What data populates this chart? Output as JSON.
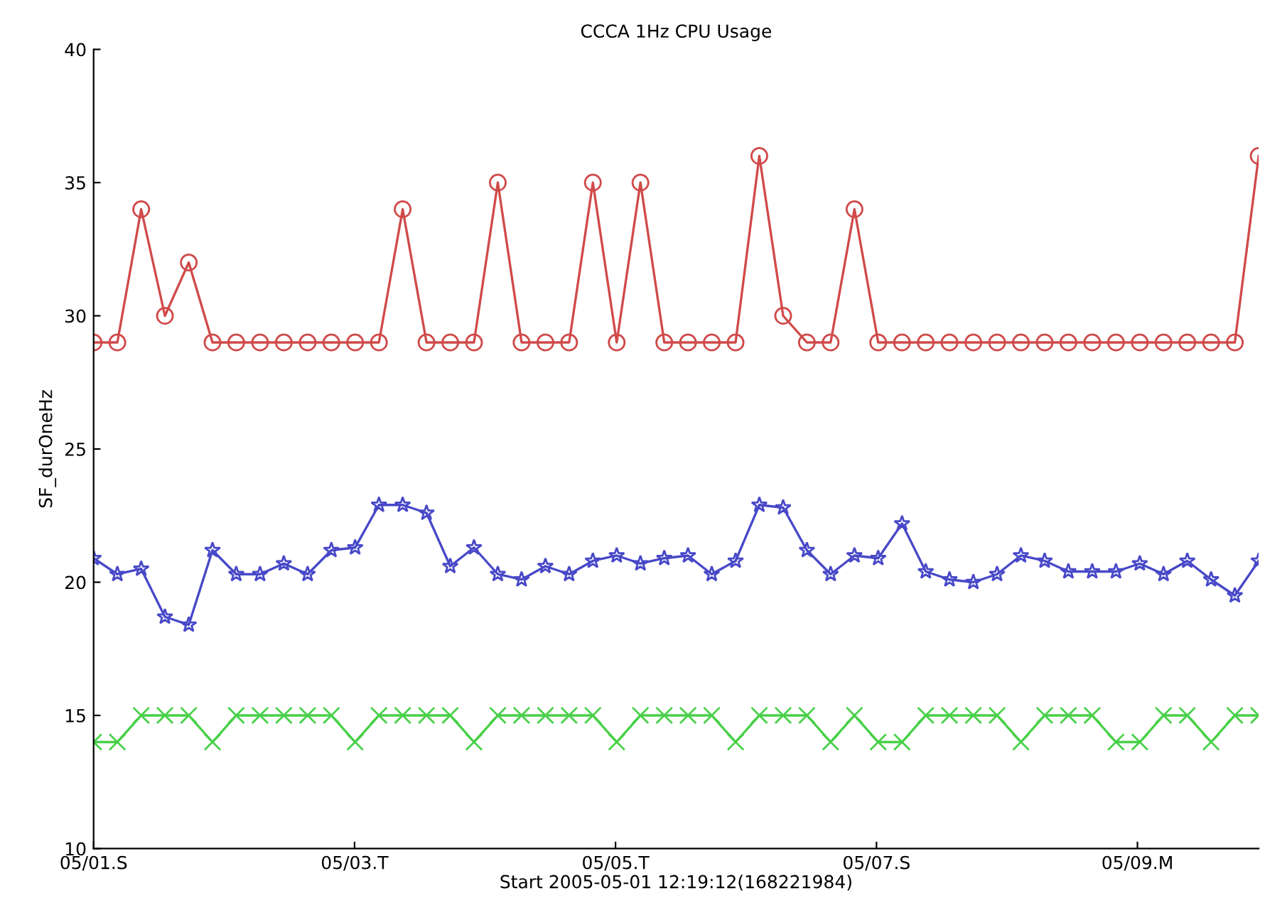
{
  "chart_data": {
    "type": "line",
    "title": "CCCA 1Hz CPU Usage",
    "xlabel": "Start 2005-05-01 12:19:12(168221984)",
    "ylabel": "SF_durOneHz",
    "x": [
      "2005-05-01T00:00",
      "2005-05-01T04:22",
      "2005-05-01T08:45",
      "2005-05-01T13:07",
      "2005-05-01T17:30",
      "2005-05-01T21:52",
      "2005-05-02T02:14",
      "2005-05-02T06:37",
      "2005-05-02T10:59",
      "2005-05-02T15:22",
      "2005-05-02T19:44",
      "2005-05-03T00:06",
      "2005-05-03T04:29",
      "2005-05-03T08:51",
      "2005-05-03T13:14",
      "2005-05-03T17:36",
      "2005-05-03T21:58",
      "2005-05-04T02:21",
      "2005-05-04T06:43",
      "2005-05-04T11:06",
      "2005-05-04T15:28",
      "2005-05-04T19:50",
      "2005-05-05T00:13",
      "2005-05-05T04:35",
      "2005-05-05T08:58",
      "2005-05-05T13:20",
      "2005-05-05T17:42",
      "2005-05-05T22:05",
      "2005-05-06T02:27",
      "2005-05-06T06:50",
      "2005-05-06T11:12",
      "2005-05-06T15:34",
      "2005-05-06T19:57",
      "2005-05-07T00:19",
      "2005-05-07T04:42",
      "2005-05-07T09:04",
      "2005-05-07T13:26",
      "2005-05-07T17:49",
      "2005-05-07T22:11",
      "2005-05-08T02:34",
      "2005-05-08T06:56",
      "2005-05-08T11:18",
      "2005-05-08T15:41",
      "2005-05-08T20:03",
      "2005-05-09T00:26",
      "2005-05-09T04:48",
      "2005-05-09T09:10",
      "2005-05-09T13:33",
      "2005-05-09T17:55",
      "2005-05-09T22:18"
    ],
    "series": [
      {
        "color": "#d04a4a",
        "marker": "circle",
        "values": [
          29,
          29,
          34,
          30,
          32,
          29,
          29,
          29,
          29,
          29,
          29,
          29,
          29,
          34,
          29,
          29,
          29,
          35,
          29,
          29,
          29,
          35,
          29,
          35,
          29,
          29,
          29,
          29,
          36,
          30,
          29,
          29,
          34,
          29,
          29,
          29,
          29,
          29,
          29,
          29,
          29,
          29,
          29,
          29,
          29,
          29,
          29,
          29,
          29,
          36
        ]
      },
      {
        "color": "#4848c8",
        "marker": "star",
        "values": [
          20.9,
          20.3,
          20.5,
          18.7,
          18.4,
          21.2,
          20.3,
          20.3,
          20.7,
          20.3,
          21.2,
          21.3,
          22.9,
          22.9,
          22.6,
          20.6,
          21.3,
          20.3,
          20.1,
          20.6,
          20.3,
          20.8,
          21.0,
          20.7,
          20.9,
          21.0,
          20.3,
          20.8,
          22.9,
          22.8,
          21.2,
          20.3,
          21.0,
          20.9,
          22.2,
          20.4,
          20.1,
          20.0,
          20.3,
          21.0,
          20.8,
          20.4,
          20.4,
          20.4,
          20.7,
          20.3,
          20.8,
          20.1,
          19.5,
          20.8
        ]
      },
      {
        "color": "#48d048",
        "marker": "cross",
        "values": [
          14,
          14,
          15,
          15,
          15,
          14,
          15,
          15,
          15,
          15,
          15,
          14,
          15,
          15,
          15,
          15,
          14,
          15,
          15,
          15,
          15,
          15,
          14,
          15,
          15,
          15,
          15,
          14,
          15,
          15,
          15,
          14,
          15,
          14,
          14,
          15,
          15,
          15,
          15,
          14,
          15,
          15,
          15,
          14,
          14,
          15,
          15,
          14,
          15,
          15
        ]
      }
    ],
    "xlim": [
      "2005-05-01T00:00",
      "2005-05-09T22:18"
    ],
    "xticks": [
      {
        "value": "2005-05-01",
        "label": "05/01.S"
      },
      {
        "value": "2005-05-03",
        "label": "05/03.T"
      },
      {
        "value": "2005-05-05",
        "label": "05/05.T"
      },
      {
        "value": "2005-05-07",
        "label": "05/07.S"
      },
      {
        "value": "2005-05-09",
        "label": "05/09.M"
      }
    ],
    "ylim": [
      10,
      40
    ],
    "yticks": [
      10,
      15,
      20,
      25,
      30,
      35,
      40
    ],
    "grid": false,
    "legend": false,
    "line_style": "solid"
  }
}
